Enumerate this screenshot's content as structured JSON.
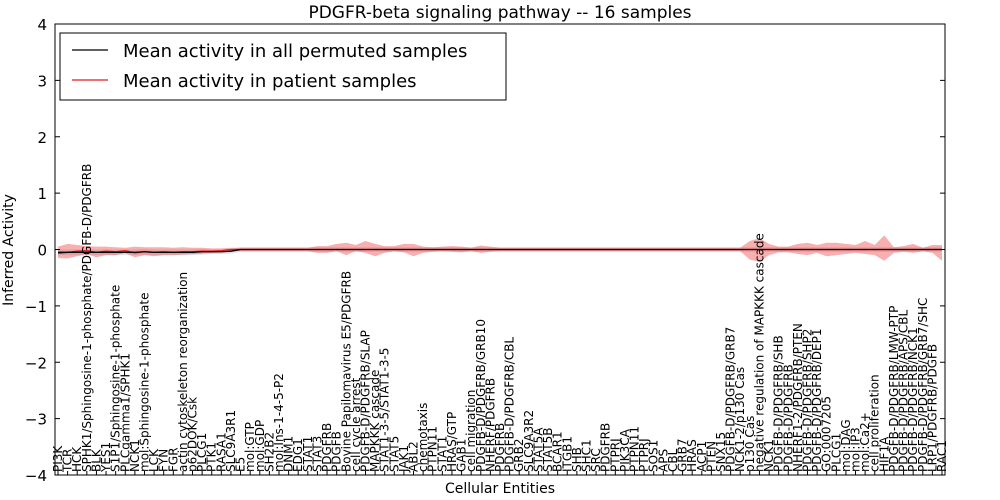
{
  "chart_data": {
    "type": "line",
    "title": "PDGFR-beta signaling pathway -- 16 samples",
    "xlabel": "Cellular Entities",
    "ylabel": "Inferred Activity",
    "ylim": [
      -4,
      4
    ],
    "yticks": [
      -4,
      -3,
      -2,
      -1,
      0,
      1,
      2,
      3,
      4
    ],
    "ytick_labels": [
      "−4",
      "−3",
      "−2",
      "−1",
      "0",
      "1",
      "2",
      "3",
      "4"
    ],
    "grid": false,
    "legend_position": "top-left",
    "categories": [
      "PI3K",
      "TCR",
      "HCK",
      "SPHK1/Sphingosine-1-phosphate/PDGFB-D/PDGFRB",
      "BLK",
      "YES1",
      "S1P1/Sphingosine-1-phosphate",
      "PLCgamma1/SPHK1",
      "NCK1",
      "mol:Sphingosine-1-phosphate",
      "LCK",
      "FYN",
      "FGR",
      "actin cytoskeleton reorganization",
      "p62DOK/Csk",
      "PLCG1",
      "PTK1",
      "RASA1",
      "SLC9A3R1",
      "E5",
      "mol:GTP",
      "mol:GDP",
      "SH2B2",
      "mol:Ins-1-4-5-P2",
      "DNM1",
      "EDG1",
      "STAT1",
      "STAT3",
      "PDGFRB",
      "PDGFB",
      "Bovine Papilomavirus E5/PDGFRB",
      "cell cycle arrest",
      "PDGFB-D/PDGFRB/SLAP",
      "MAPKKK cascade",
      "STAT1-3-5/STAT1-3-5",
      "STAT5",
      "JAK1",
      "ABL2",
      "chemotaxis",
      "PTPN11",
      "STAT1",
      "HRAS/GTP",
      "GAB1",
      "cell migration",
      "PDGFB-D/PDGFRB/GRB10",
      "NHERF/PDGFRB",
      "PDGFRB",
      "PDGFB-D/PDGFRB/CBL",
      "GRB2",
      "SLC9A3R2",
      "STAT5A",
      "STAT5B",
      "BCAR1",
      "ITGB1",
      "SHB",
      "SHC1",
      "SRC",
      "PDGFRB",
      "PTPRJ",
      "PIK3CA",
      "PTPN11",
      "PTPRJ",
      "SOS1",
      "APS",
      "CBL",
      "GRB7",
      "HRAS",
      "ACP1",
      "PTEN",
      "SNX15",
      "PDGFB-D/PDGFRB/GRB7",
      "NCK1-2/p130 Cas",
      "p130 Cas",
      "negative regulation of MAPKKK cascade",
      "NCK1",
      "PDGFB-D/PDGFRB/SHB",
      "PDGFB-D/PDGFRB",
      "NHERF1-2/PDGFRB/PTEN",
      "PDGFB-D/PDGFRB/SHP2",
      "PDGFB-D/PDGFRB/DEP1",
      "GO:0007205",
      "PLCG1",
      "mol:DAG",
      "mol:IP3",
      "mol:Ca2+",
      "cell proliferation",
      "HIF1A",
      "PDGFB-D/PDGFRB/LMW-PTP",
      "PDGFB-D/PDGFRB/APS/CBL",
      "PDGFB-D/PDGFRB/NCK1",
      "PDGFB-D/PDGFRB/GRB7/SHC",
      "LRP1/PDGFRB/PDGFB",
      "RAC1"
    ],
    "series": [
      {
        "name": "Mean activity in all permuted samples",
        "color": "#000000",
        "values": [
          -0.05,
          -0.05,
          -0.05,
          -0.05,
          -0.05,
          -0.05,
          -0.05,
          -0.05,
          -0.05,
          -0.04,
          -0.05,
          -0.05,
          -0.05,
          -0.05,
          -0.05,
          -0.04,
          -0.04,
          -0.04,
          -0.03,
          0.0,
          0.0,
          0.0,
          0.0,
          0.0,
          0.0,
          0.0,
          0.0,
          0.0,
          0.0,
          0.0,
          0.0,
          0.0,
          0.0,
          0.0,
          0.0,
          0.0,
          0.0,
          0.0,
          0.0,
          0.0,
          0.0,
          0.0,
          0.0,
          0.0,
          0.0,
          0.0,
          0.0,
          0.0,
          0.0,
          0.0,
          0.0,
          0.0,
          0.0,
          0.0,
          0.0,
          0.0,
          0.0,
          0.0,
          0.0,
          0.0,
          0.0,
          0.0,
          0.0,
          0.0,
          0.0,
          0.0,
          0.0,
          0.0,
          0.0,
          0.0,
          0.0,
          0.0,
          0.0,
          0.0,
          0.0,
          0.0,
          0.0,
          0.0,
          0.0,
          0.0,
          0.0,
          0.0,
          0.0,
          0.0,
          0.0,
          0.0,
          0.0,
          0.0,
          0.0,
          0.0,
          0.0,
          0.0,
          0.0
        ],
        "band_lower": [
          -0.1,
          -0.1,
          -0.1,
          -0.1,
          -0.1,
          -0.1,
          -0.1,
          -0.1,
          -0.1,
          -0.09,
          -0.1,
          -0.1,
          -0.1,
          -0.1,
          -0.1,
          -0.09,
          -0.08,
          -0.08,
          -0.07,
          -0.04,
          -0.04,
          -0.04,
          -0.04,
          -0.04,
          -0.04,
          -0.04,
          -0.04,
          -0.04,
          -0.04,
          -0.04,
          -0.04,
          -0.04,
          -0.04,
          -0.04,
          -0.04,
          -0.04,
          -0.04,
          -0.04,
          -0.04,
          -0.04,
          -0.04,
          -0.04,
          -0.04,
          -0.04,
          -0.04,
          -0.04,
          -0.04,
          -0.04,
          -0.04,
          -0.04,
          -0.04,
          -0.04,
          -0.04,
          -0.04,
          -0.04,
          -0.04,
          -0.04,
          -0.04,
          -0.04,
          -0.04,
          -0.04,
          -0.04,
          -0.04,
          -0.04,
          -0.04,
          -0.04,
          -0.04,
          -0.04,
          -0.04,
          -0.04,
          -0.04,
          -0.04,
          -0.04,
          -0.04,
          -0.04,
          -0.04,
          -0.04,
          -0.04,
          -0.04,
          -0.04,
          -0.04,
          -0.04,
          -0.04,
          -0.04,
          -0.04,
          -0.04,
          -0.04,
          -0.04,
          -0.04,
          -0.04,
          -0.04,
          -0.04,
          -0.04
        ],
        "band_upper": [
          0.0,
          0.0,
          0.0,
          0.0,
          0.0,
          0.0,
          0.0,
          0.0,
          0.0,
          0.01,
          0.0,
          0.0,
          0.0,
          0.0,
          0.0,
          0.01,
          0.0,
          0.0,
          0.01,
          0.04,
          0.04,
          0.04,
          0.04,
          0.04,
          0.04,
          0.04,
          0.04,
          0.04,
          0.04,
          0.04,
          0.04,
          0.04,
          0.04,
          0.04,
          0.04,
          0.04,
          0.04,
          0.04,
          0.04,
          0.04,
          0.04,
          0.04,
          0.04,
          0.04,
          0.04,
          0.04,
          0.04,
          0.04,
          0.04,
          0.04,
          0.04,
          0.04,
          0.04,
          0.04,
          0.04,
          0.04,
          0.04,
          0.04,
          0.04,
          0.04,
          0.04,
          0.04,
          0.04,
          0.04,
          0.04,
          0.04,
          0.04,
          0.04,
          0.04,
          0.04,
          0.04,
          0.04,
          0.04,
          0.04,
          0.04,
          0.04,
          0.04,
          0.04,
          0.04,
          0.04,
          0.04,
          0.04,
          0.04,
          0.04,
          0.04,
          0.04,
          0.04,
          0.04,
          0.04,
          0.04,
          0.04,
          0.04,
          0.04
        ]
      },
      {
        "name": "Mean activity in patient samples",
        "color": "#e31a1c",
        "values": [
          -0.07,
          -0.05,
          -0.03,
          -0.02,
          -0.05,
          -0.03,
          -0.04,
          -0.02,
          -0.06,
          -0.04,
          -0.05,
          -0.04,
          -0.05,
          -0.04,
          -0.04,
          -0.03,
          -0.03,
          -0.02,
          0.0,
          0.0,
          0.0,
          0.0,
          0.0,
          0.0,
          0.0,
          0.0,
          0.0,
          0.0,
          0.0,
          0.0,
          0.0,
          0.0,
          0.0,
          0.0,
          0.0,
          0.0,
          0.0,
          0.0,
          0.0,
          0.0,
          0.0,
          0.0,
          0.0,
          0.0,
          0.0,
          0.0,
          0.0,
          0.0,
          0.0,
          0.0,
          0.0,
          0.0,
          0.0,
          0.0,
          0.0,
          0.0,
          0.0,
          0.0,
          0.0,
          0.0,
          0.0,
          0.0,
          0.0,
          0.0,
          0.0,
          0.0,
          0.0,
          0.0,
          0.0,
          0.0,
          0.0,
          0.0,
          0.0,
          0.0,
          0.0,
          0.0,
          0.0,
          0.0,
          0.0,
          0.0,
          0.0,
          0.0,
          0.0,
          0.0,
          0.0,
          0.0,
          0.0,
          0.0,
          0.0,
          0.0,
          0.0,
          0.0,
          0.0
        ],
        "band_lower": [
          -0.15,
          -0.16,
          -0.12,
          -0.08,
          -0.14,
          -0.1,
          -0.1,
          -0.06,
          -0.14,
          -0.1,
          -0.12,
          -0.1,
          -0.1,
          -0.09,
          -0.08,
          -0.07,
          -0.06,
          -0.05,
          -0.03,
          -0.03,
          -0.03,
          -0.03,
          -0.03,
          -0.03,
          -0.03,
          -0.03,
          -0.03,
          -0.06,
          -0.06,
          -0.03,
          -0.1,
          -0.03,
          -0.06,
          -0.12,
          -0.06,
          -0.03,
          -0.05,
          -0.12,
          -0.06,
          -0.04,
          -0.03,
          -0.04,
          -0.05,
          -0.03,
          -0.06,
          -0.04,
          -0.03,
          -0.03,
          -0.03,
          -0.03,
          -0.03,
          -0.03,
          -0.03,
          -0.03,
          -0.03,
          -0.03,
          -0.03,
          -0.03,
          -0.03,
          -0.03,
          -0.03,
          -0.03,
          -0.03,
          -0.03,
          -0.03,
          -0.03,
          -0.03,
          -0.03,
          -0.03,
          -0.03,
          -0.03,
          -0.03,
          -0.18,
          -0.22,
          -0.1,
          -0.05,
          -0.05,
          -0.08,
          -0.1,
          -0.06,
          -0.12,
          -0.1,
          -0.08,
          -0.06,
          -0.08,
          -0.1,
          -0.2,
          -0.06,
          -0.04,
          -0.06,
          -0.03,
          -0.06,
          -0.2
        ],
        "band_upper": [
          0.05,
          0.1,
          0.08,
          0.06,
          0.05,
          0.05,
          0.04,
          0.03,
          0.05,
          0.04,
          0.04,
          0.04,
          0.03,
          0.04,
          0.03,
          0.03,
          0.02,
          0.02,
          0.03,
          0.03,
          0.03,
          0.03,
          0.03,
          0.03,
          0.03,
          0.03,
          0.03,
          0.06,
          0.06,
          0.1,
          0.12,
          0.08,
          0.15,
          0.1,
          0.06,
          0.06,
          0.1,
          0.1,
          0.05,
          0.04,
          0.05,
          0.06,
          0.05,
          0.03,
          0.07,
          0.05,
          0.03,
          0.03,
          0.03,
          0.03,
          0.03,
          0.03,
          0.03,
          0.03,
          0.03,
          0.03,
          0.03,
          0.03,
          0.03,
          0.03,
          0.03,
          0.03,
          0.03,
          0.03,
          0.03,
          0.03,
          0.03,
          0.03,
          0.03,
          0.03,
          0.03,
          0.03,
          0.15,
          0.2,
          0.1,
          0.05,
          0.05,
          0.1,
          0.12,
          0.08,
          0.12,
          0.12,
          0.1,
          0.08,
          0.15,
          0.08,
          0.25,
          0.04,
          0.06,
          0.1,
          0.03,
          0.08,
          0.08
        ]
      }
    ]
  }
}
